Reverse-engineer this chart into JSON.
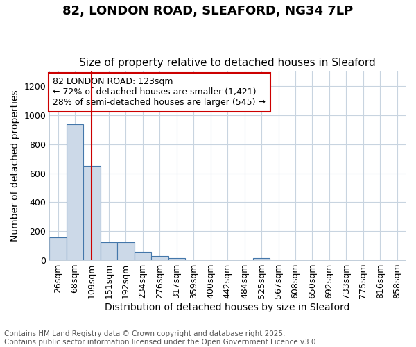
{
  "title1": "82, LONDON ROAD, SLEAFORD, NG34 7LP",
  "title2": "Size of property relative to detached houses in Sleaford",
  "xlabel": "Distribution of detached houses by size in Sleaford",
  "ylabel": "Number of detached properties",
  "bin_labels": [
    "26sqm",
    "68sqm",
    "109sqm",
    "151sqm",
    "192sqm",
    "234sqm",
    "276sqm",
    "317sqm",
    "359sqm",
    "400sqm",
    "442sqm",
    "484sqm",
    "525sqm",
    "567sqm",
    "608sqm",
    "650sqm",
    "692sqm",
    "733sqm",
    "775sqm",
    "816sqm",
    "858sqm"
  ],
  "bar_heights": [
    160,
    940,
    650,
    125,
    125,
    55,
    27,
    12,
    0,
    0,
    0,
    0,
    12,
    0,
    0,
    0,
    0,
    0,
    0,
    0,
    0
  ],
  "bar_color": "#ccd9e8",
  "bar_edge_color": "#4477aa",
  "bar_edge_width": 0.8,
  "ylim": [
    0,
    1300
  ],
  "yticks": [
    0,
    200,
    400,
    600,
    800,
    1000,
    1200
  ],
  "red_line_x": 2.5,
  "red_line_color": "#cc0000",
  "annotation_text": "82 LONDON ROAD: 123sqm\n← 72% of detached houses are smaller (1,421)\n28% of semi-detached houses are larger (545) →",
  "annotation_border_color": "#cc0000",
  "background_color": "#ffffff",
  "plot_bg_color": "#ffffff",
  "grid_color": "#c8d4e0",
  "footer_text": "Contains HM Land Registry data © Crown copyright and database right 2025.\nContains public sector information licensed under the Open Government Licence v3.0.",
  "title_fontsize": 13,
  "subtitle_fontsize": 11,
  "axis_label_fontsize": 10,
  "tick_fontsize": 9,
  "annotation_fontsize": 9,
  "footer_fontsize": 7.5
}
